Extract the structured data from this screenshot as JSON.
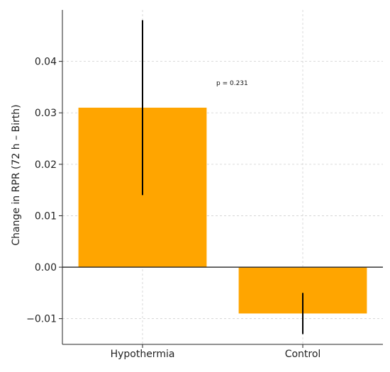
{
  "chart_data": {
    "type": "bar",
    "categories": [
      "Hypothermia",
      "Control"
    ],
    "values": [
      0.031,
      -0.009
    ],
    "error_bars": [
      {
        "low": 0.014,
        "high": 0.048
      },
      {
        "low": -0.013,
        "high": -0.005
      }
    ],
    "ylabel": "Change in RPR (72 h – Birth)",
    "ylim": [
      -0.015,
      0.05
    ],
    "yticks": [
      -0.01,
      0.0,
      0.01,
      0.02,
      0.03,
      0.04
    ],
    "ytick_labels": [
      "−0.01",
      "0.00",
      "0.01",
      "0.02",
      "0.03",
      "0.04"
    ],
    "annotation": "p = 0.231",
    "grid": true,
    "bar_color": "#ffa500"
  }
}
